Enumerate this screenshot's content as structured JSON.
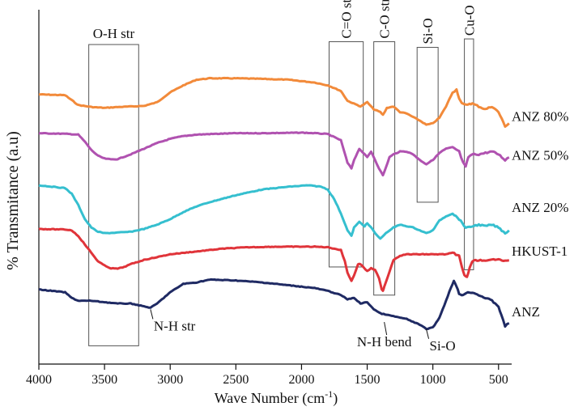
{
  "chart_data": {
    "type": "line",
    "title": "",
    "xlabel": "Wave Number (cm",
    "xlabel_sup": "-1",
    "xlabel_close": ")",
    "ylabel": "% Transmitance (a.u)",
    "xlim": [
      4000,
      400
    ],
    "x_reversed": true,
    "ylim": [
      0,
      100
    ],
    "y_ticks_shown": false,
    "x_ticks": [
      4000,
      3500,
      3000,
      2500,
      2000,
      1500,
      1000,
      500
    ],
    "x_tick_labels": [
      "4000",
      "3500",
      "3000",
      "2500",
      "2000",
      "1500",
      "1000",
      "500"
    ],
    "series": [
      {
        "name": "ANZ 80%",
        "color": "#f28a3a",
        "points": [
          [
            4000,
            84.3
          ],
          [
            3800,
            84
          ],
          [
            3700,
            80.5
          ],
          [
            3600,
            79.8
          ],
          [
            3500,
            79.5
          ],
          [
            3400,
            79.8
          ],
          [
            3300,
            80
          ],
          [
            3200,
            80.2
          ],
          [
            3100,
            81.5
          ],
          [
            3000,
            85
          ],
          [
            2900,
            87.5
          ],
          [
            2800,
            89.5
          ],
          [
            2700,
            90
          ],
          [
            2500,
            90
          ],
          [
            2300,
            89.8
          ],
          [
            2100,
            89.5
          ],
          [
            1900,
            88.5
          ],
          [
            1800,
            87.5
          ],
          [
            1700,
            85.5
          ],
          [
            1650,
            82
          ],
          [
            1600,
            81
          ],
          [
            1550,
            80
          ],
          [
            1500,
            81.5
          ],
          [
            1450,
            79
          ],
          [
            1400,
            78
          ],
          [
            1380,
            77
          ],
          [
            1350,
            79.5
          ],
          [
            1300,
            80
          ],
          [
            1250,
            78
          ],
          [
            1200,
            77.5
          ],
          [
            1100,
            75
          ],
          [
            1050,
            73.5
          ],
          [
            1000,
            74
          ],
          [
            950,
            76
          ],
          [
            900,
            80
          ],
          [
            850,
            85
          ],
          [
            820,
            86
          ],
          [
            800,
            83
          ],
          [
            780,
            81
          ],
          [
            750,
            80.5
          ],
          [
            720,
            81
          ],
          [
            700,
            81
          ],
          [
            650,
            80
          ],
          [
            600,
            79
          ],
          [
            550,
            80
          ],
          [
            500,
            78
          ],
          [
            450,
            73
          ],
          [
            420,
            74
          ]
        ]
      },
      {
        "name": "ANZ 50%",
        "color": "#b052b0",
        "points": [
          [
            4000,
            70.5
          ],
          [
            3800,
            70.3
          ],
          [
            3700,
            70
          ],
          [
            3650,
            67.5
          ],
          [
            3600,
            64.5
          ],
          [
            3550,
            62.5
          ],
          [
            3500,
            61.5
          ],
          [
            3450,
            61.2
          ],
          [
            3400,
            61.3
          ],
          [
            3300,
            63
          ],
          [
            3200,
            65
          ],
          [
            3100,
            67
          ],
          [
            3000,
            68.5
          ],
          [
            2900,
            69.5
          ],
          [
            2800,
            70
          ],
          [
            2700,
            70.2
          ],
          [
            2500,
            70.5
          ],
          [
            2300,
            70.5
          ],
          [
            2000,
            70.7
          ],
          [
            1900,
            70.5
          ],
          [
            1800,
            70.2
          ],
          [
            1700,
            68
          ],
          [
            1650,
            60
          ],
          [
            1620,
            58
          ],
          [
            1600,
            61
          ],
          [
            1560,
            65
          ],
          [
            1520,
            63
          ],
          [
            1500,
            62
          ],
          [
            1470,
            64
          ],
          [
            1440,
            61
          ],
          [
            1410,
            58
          ],
          [
            1380,
            55.5
          ],
          [
            1360,
            58
          ],
          [
            1330,
            62
          ],
          [
            1300,
            63
          ],
          [
            1250,
            64
          ],
          [
            1200,
            64
          ],
          [
            1150,
            63
          ],
          [
            1100,
            61
          ],
          [
            1050,
            59.5
          ],
          [
            1000,
            61
          ],
          [
            950,
            63.5
          ],
          [
            900,
            65
          ],
          [
            850,
            65.5
          ],
          [
            800,
            64
          ],
          [
            770,
            60
          ],
          [
            750,
            58.5
          ],
          [
            730,
            62
          ],
          [
            700,
            63
          ],
          [
            650,
            63
          ],
          [
            600,
            63.5
          ],
          [
            550,
            64
          ],
          [
            500,
            63
          ],
          [
            450,
            61
          ],
          [
            420,
            62
          ]
        ]
      },
      {
        "name": "ANZ 20%",
        "color": "#35bfcf",
        "points": [
          [
            4000,
            52
          ],
          [
            3900,
            51.5
          ],
          [
            3800,
            51
          ],
          [
            3750,
            49
          ],
          [
            3700,
            45
          ],
          [
            3650,
            40
          ],
          [
            3600,
            37
          ],
          [
            3550,
            35.5
          ],
          [
            3500,
            35
          ],
          [
            3400,
            35.2
          ],
          [
            3300,
            35.5
          ],
          [
            3200,
            36.5
          ],
          [
            3100,
            38
          ],
          [
            3000,
            40
          ],
          [
            2900,
            42.5
          ],
          [
            2800,
            44.5
          ],
          [
            2700,
            46
          ],
          [
            2500,
            48.5
          ],
          [
            2300,
            50.5
          ],
          [
            2100,
            51.5
          ],
          [
            1950,
            52
          ],
          [
            1850,
            51.5
          ],
          [
            1800,
            50.5
          ],
          [
            1750,
            47
          ],
          [
            1700,
            42
          ],
          [
            1650,
            36
          ],
          [
            1620,
            34
          ],
          [
            1600,
            37
          ],
          [
            1560,
            39
          ],
          [
            1520,
            37.5
          ],
          [
            1500,
            38.5
          ],
          [
            1470,
            37
          ],
          [
            1440,
            35
          ],
          [
            1400,
            33
          ],
          [
            1370,
            34.5
          ],
          [
            1330,
            36
          ],
          [
            1300,
            37
          ],
          [
            1250,
            38
          ],
          [
            1200,
            37.5
          ],
          [
            1150,
            37
          ],
          [
            1100,
            36
          ],
          [
            1050,
            35
          ],
          [
            1000,
            36
          ],
          [
            950,
            39.5
          ],
          [
            900,
            41
          ],
          [
            850,
            42
          ],
          [
            800,
            40
          ],
          [
            750,
            37
          ],
          [
            720,
            37
          ],
          [
            700,
            37.5
          ],
          [
            650,
            38
          ],
          [
            600,
            37.5
          ],
          [
            550,
            38
          ],
          [
            500,
            37
          ],
          [
            450,
            35
          ],
          [
            420,
            36
          ]
        ]
      },
      {
        "name": "HKUST-1",
        "color": "#e0343a",
        "points": [
          [
            4000,
            36.5
          ],
          [
            3800,
            36.3
          ],
          [
            3750,
            36
          ],
          [
            3700,
            34
          ],
          [
            3650,
            31
          ],
          [
            3600,
            28
          ],
          [
            3550,
            25
          ],
          [
            3500,
            23.5
          ],
          [
            3450,
            22.5
          ],
          [
            3400,
            22.4
          ],
          [
            3350,
            23
          ],
          [
            3300,
            24
          ],
          [
            3200,
            25.5
          ],
          [
            3100,
            26.5
          ],
          [
            3000,
            27.5
          ],
          [
            2800,
            28.5
          ],
          [
            2600,
            29.5
          ],
          [
            2400,
            30
          ],
          [
            2200,
            30.2
          ],
          [
            2000,
            30.2
          ],
          [
            1900,
            30.2
          ],
          [
            1800,
            30
          ],
          [
            1700,
            29
          ],
          [
            1670,
            25
          ],
          [
            1650,
            21
          ],
          [
            1620,
            18
          ],
          [
            1600,
            20
          ],
          [
            1570,
            24
          ],
          [
            1550,
            24
          ],
          [
            1520,
            22.5
          ],
          [
            1500,
            21.5
          ],
          [
            1470,
            22.5
          ],
          [
            1440,
            22
          ],
          [
            1410,
            19
          ],
          [
            1390,
            15
          ],
          [
            1380,
            14.5
          ],
          [
            1370,
            16
          ],
          [
            1340,
            20
          ],
          [
            1300,
            25.5
          ],
          [
            1250,
            27
          ],
          [
            1200,
            27.5
          ],
          [
            1100,
            27.5
          ],
          [
            1000,
            27.5
          ],
          [
            900,
            27.5
          ],
          [
            850,
            28
          ],
          [
            800,
            27
          ],
          [
            780,
            23
          ],
          [
            760,
            20
          ],
          [
            740,
            19.5
          ],
          [
            720,
            22.5
          ],
          [
            700,
            25
          ],
          [
            650,
            25.5
          ],
          [
            600,
            25
          ],
          [
            550,
            25.5
          ],
          [
            500,
            26
          ],
          [
            450,
            25
          ],
          [
            420,
            25.5
          ]
        ]
      },
      {
        "name": "ANZ",
        "color": "#1f2a63",
        "points": [
          [
            4000,
            15
          ],
          [
            3900,
            14.5
          ],
          [
            3800,
            14
          ],
          [
            3750,
            12
          ],
          [
            3700,
            11
          ],
          [
            3600,
            11
          ],
          [
            3500,
            10.5
          ],
          [
            3400,
            10
          ],
          [
            3300,
            10
          ],
          [
            3200,
            9
          ],
          [
            3150,
            8.5
          ],
          [
            3100,
            10
          ],
          [
            3000,
            14
          ],
          [
            2900,
            17
          ],
          [
            2800,
            17.5
          ],
          [
            2700,
            18.5
          ],
          [
            2500,
            18.2
          ],
          [
            2300,
            17.5
          ],
          [
            2100,
            16.5
          ],
          [
            1900,
            15.5
          ],
          [
            1800,
            14.5
          ],
          [
            1700,
            13
          ],
          [
            1650,
            11.5
          ],
          [
            1600,
            12
          ],
          [
            1550,
            10
          ],
          [
            1500,
            10.5
          ],
          [
            1450,
            8
          ],
          [
            1400,
            6.5
          ],
          [
            1350,
            6
          ],
          [
            1300,
            5.5
          ],
          [
            1250,
            5
          ],
          [
            1200,
            4.5
          ],
          [
            1150,
            3.5
          ],
          [
            1100,
            2.5
          ],
          [
            1050,
            1
          ],
          [
            1000,
            1.5
          ],
          [
            950,
            5
          ],
          [
            900,
            11
          ],
          [
            860,
            16
          ],
          [
            840,
            18
          ],
          [
            820,
            16
          ],
          [
            800,
            13.5
          ],
          [
            780,
            13
          ],
          [
            760,
            13.5
          ],
          [
            720,
            14
          ],
          [
            700,
            14
          ],
          [
            650,
            13
          ],
          [
            600,
            12
          ],
          [
            550,
            11
          ],
          [
            500,
            9
          ],
          [
            480,
            6
          ],
          [
            450,
            2
          ],
          [
            420,
            3
          ]
        ]
      }
    ],
    "boxes": [
      {
        "label": "O-H str",
        "x1": 3620,
        "x2": 3240,
        "y1": 102,
        "y2": -5
      },
      {
        "label": "C=O str",
        "x1": 1790,
        "x2": 1530,
        "y1": 103,
        "y2": 23
      },
      {
        "label": "C-O str",
        "x1": 1450,
        "x2": 1290,
        "y1": 103,
        "y2": 13
      },
      {
        "label": "Si-O",
        "x1": 1120,
        "x2": 960,
        "y1": 101,
        "y2": 46
      },
      {
        "label": "Cu-O",
        "x1": 760,
        "x2": 690,
        "y1": 104,
        "y2": 22
      }
    ],
    "annotations": [
      {
        "text": "N-H str",
        "x": 3150,
        "y": 8.5,
        "pos": "below-right"
      },
      {
        "text": "N-H bend",
        "x": 1370,
        "y": 4,
        "pos": "below"
      },
      {
        "text": "Si-O",
        "x": 1050,
        "y": 1.5,
        "pos": "below-right"
      }
    ]
  }
}
